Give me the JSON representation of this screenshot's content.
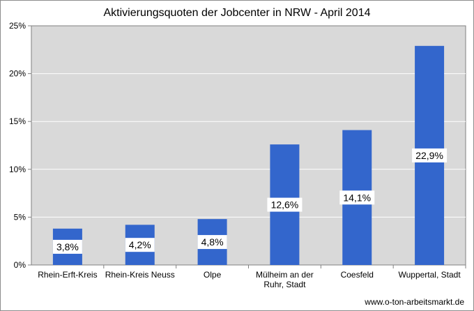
{
  "chart_data": {
    "type": "bar",
    "title": "Aktivierungsquoten der Jobcenter in NRW - April 2014",
    "categories": [
      [
        "Rhein-Erft-Kreis"
      ],
      [
        "Rhein-Kreis Neuss"
      ],
      [
        "Olpe"
      ],
      [
        "Mülheim an der",
        "Ruhr, Stadt"
      ],
      [
        "Coesfeld"
      ],
      [
        "Wuppertal, Stadt"
      ]
    ],
    "values": [
      3.8,
      4.2,
      4.8,
      12.6,
      14.1,
      22.9
    ],
    "data_labels": [
      "3,8%",
      "4,2%",
      "4,8%",
      "12,6%",
      "14,1%",
      "22,9%"
    ],
    "ylim": [
      0,
      25
    ],
    "yticks": [
      0,
      5,
      10,
      15,
      20,
      25
    ],
    "ytick_labels": [
      "0%",
      "5%",
      "10%",
      "15%",
      "20%",
      "25%"
    ],
    "xlabel": "",
    "ylabel": "",
    "grid": true,
    "legend": "none",
    "colors": {
      "bar": "#3366cc",
      "plot_bg": "#d9d9d9",
      "grid": "#ffffff",
      "label_bg": "#ffffff"
    }
  },
  "footer": {
    "source": "www.o-ton-arbeitsmarkt.de"
  }
}
